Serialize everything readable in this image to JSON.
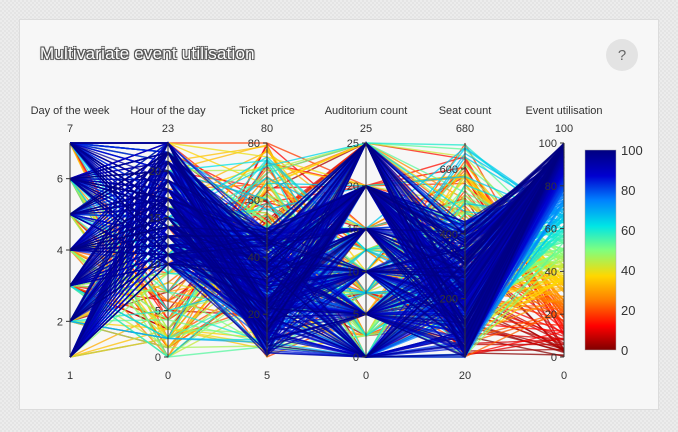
{
  "title": "Multivariate event utilisation",
  "help_label": "?",
  "chart_data": {
    "type": "parallel_coordinates",
    "color_dimension": "Event utilisation",
    "colorscale": "jet-reversed",
    "colorbar_ticks": [
      0,
      20,
      40,
      60,
      80,
      100
    ],
    "dimensions": [
      {
        "label": "Day of the week",
        "range": [
          1,
          7
        ],
        "ticks": [
          2,
          4,
          6
        ]
      },
      {
        "label": "Hour of the day",
        "range": [
          0,
          23
        ],
        "ticks": [
          0,
          5,
          10,
          15,
          20
        ]
      },
      {
        "label": "Ticket price",
        "range": [
          5,
          80
        ],
        "ticks": [
          20,
          40,
          60,
          80
        ]
      },
      {
        "label": "Auditorium count",
        "range": [
          0,
          25
        ],
        "ticks": [
          0,
          5,
          10,
          15,
          20,
          25
        ]
      },
      {
        "label": "Seat count",
        "range": [
          20,
          680
        ],
        "ticks": [
          200,
          400,
          600
        ]
      },
      {
        "label": "Event utilisation",
        "range": [
          0,
          100
        ],
        "ticks": [
          0,
          20,
          40,
          60,
          80,
          100
        ]
      }
    ]
  }
}
